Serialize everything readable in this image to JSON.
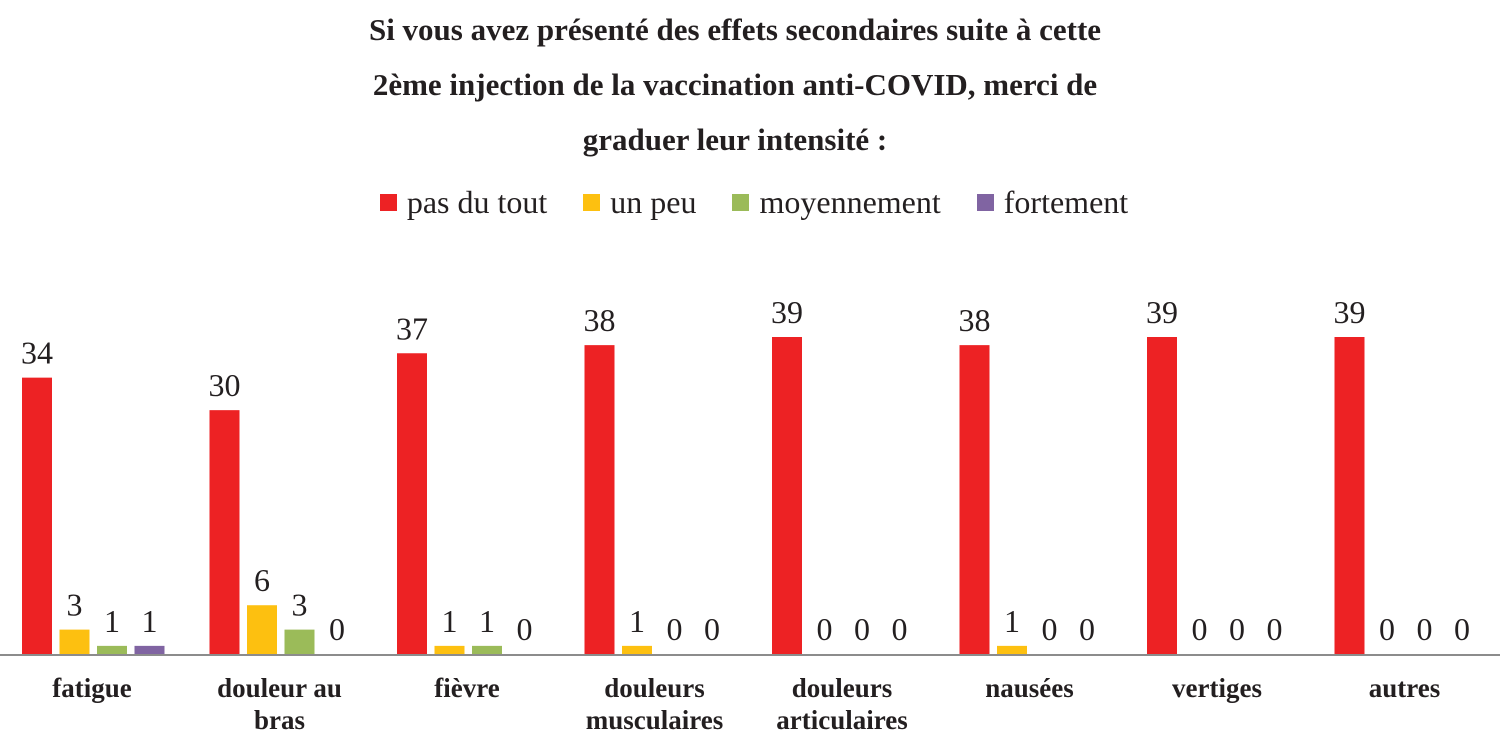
{
  "chart_data": {
    "type": "bar",
    "title": [
      "Si vous avez présenté des effets secondaires suite à cette",
      "2ème injection de la vaccination anti-COVID, merci de",
      "graduer leur intensité :"
    ],
    "categories": [
      [
        "fatigue"
      ],
      [
        "douleur au",
        "bras"
      ],
      [
        "fièvre"
      ],
      [
        "douleurs",
        "musculaires"
      ],
      [
        "douleurs",
        "articulaires"
      ],
      [
        "nausées"
      ],
      [
        "vertiges"
      ],
      [
        "autres"
      ]
    ],
    "series": [
      {
        "name": "pas du tout",
        "color": "#ed2224",
        "values": [
          34,
          30,
          37,
          38,
          39,
          38,
          39,
          39
        ],
        "labels": [
          "34",
          "30",
          "37",
          "38",
          "39",
          "38",
          "39",
          "39"
        ]
      },
      {
        "name": "un peu",
        "color": "#fdc010",
        "values": [
          3,
          6,
          1,
          1,
          0,
          1,
          0,
          0
        ],
        "labels": [
          "3",
          "6",
          "1",
          "1",
          "0",
          "1",
          "0",
          "0"
        ]
      },
      {
        "name": "moyennement",
        "color": "#9bbb59",
        "values": [
          1,
          3,
          1,
          0,
          0,
          0,
          0,
          0
        ],
        "labels": [
          "1",
          "3",
          "1",
          "0",
          "0",
          "0",
          "0",
          "0"
        ]
      },
      {
        "name": "fortement",
        "color": "#8064a2",
        "values": [
          1,
          0,
          0,
          0,
          0,
          0,
          0,
          0
        ],
        "labels": [
          "1",
          "0",
          "0",
          "0",
          "0",
          "0",
          "0",
          "0"
        ]
      }
    ],
    "ylim": [
      0,
      39
    ],
    "xlabel": "",
    "ylabel": "",
    "legend_position": "top",
    "grid": false
  }
}
